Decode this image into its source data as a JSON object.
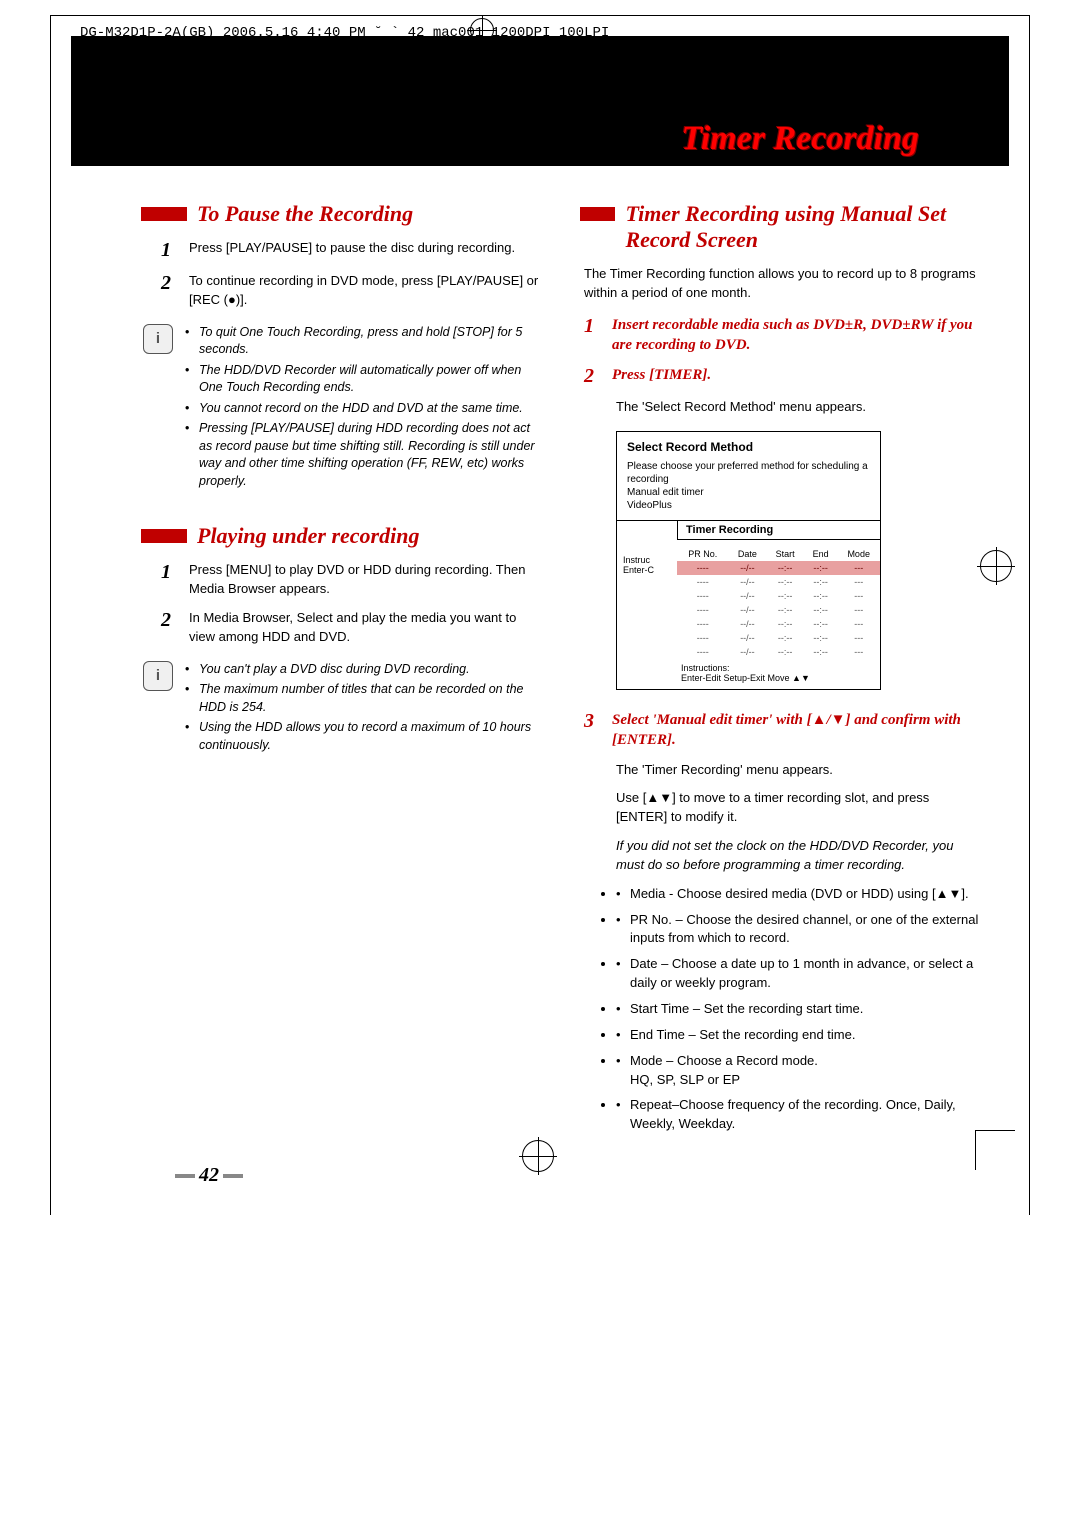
{
  "crop_header": "DG-M32D1P-2A(GB)  2006.5.16 4:40 PM  ˘   ` 42   mac001  1200DPI 100LPI",
  "page_title": "Timer Recording",
  "page_number": "42",
  "colors": {
    "accent_red": "#c00000",
    "title_red": "#ff0000",
    "black": "#000000",
    "selected_row_bg": "#e8a0a0"
  },
  "left": {
    "section1": {
      "title": "To Pause the Recording",
      "steps": [
        {
          "num": "1",
          "text": "Press [PLAY/PAUSE] to pause the disc during recording."
        },
        {
          "num": "2",
          "text": "To continue recording in DVD mode, press [PLAY/PAUSE] or [REC (●)]."
        }
      ],
      "notes": [
        "To quit One Touch Recording, press and hold [STOP] for 5 seconds.",
        "The HDD/DVD Recorder will automatically power off when One Touch Recording ends.",
        "You cannot record on the HDD and DVD at the same time.",
        "Pressing [PLAY/PAUSE] during HDD recording does not act as record pause but time shifting still. Recording is still under way and other time shifting operation (FF, REW, etc) works properly."
      ]
    },
    "section2": {
      "title": "Playing under recording",
      "steps": [
        {
          "num": "1",
          "text": "Press [MENU] to play DVD or HDD during recording. Then Media Browser appears."
        },
        {
          "num": "2",
          "text": "In Media Browser, Select and play the media you want to view among HDD and DVD."
        }
      ],
      "notes": [
        "You can't play a DVD disc during DVD recording.",
        "The maximum number of titles that can be recorded on the HDD is 254.",
        "Using the HDD allows you to record a maximum of 10 hours continuously."
      ]
    }
  },
  "right": {
    "title": "Timer Recording using Manual Set Record Screen",
    "intro": "The Timer Recording function allows you to record up to 8 programs within a period of one month.",
    "steps": {
      "s1": {
        "num": "1",
        "head": "Insert recordable media such as DVD±R, DVD±RW if you are recording to DVD."
      },
      "s2": {
        "num": "2",
        "head": "Press [TIMER].",
        "body": "The 'Select Record Method' menu appears."
      },
      "s3": {
        "num": "3",
        "head": "Select 'Manual edit timer' with [▲/▼] and confirm with [ENTER].",
        "body1": "The 'Timer Recording' menu appears.",
        "body2": "Use [▲▼] to move to a timer recording slot, and press [ENTER] to modify it.",
        "italic": "If you did not set the clock on the HDD/DVD Recorder, you must do so before programming a timer recording.",
        "bullets": [
          "Media - Choose desired media (DVD or HDD) using [▲▼].",
          "PR No. – Choose the desired channel, or one of the external inputs from which to record.",
          "Date – Choose a date up to 1 month in advance, or select a daily or weekly program.",
          "Start Time – Set the recording start time.",
          "End Time – Set the recording end time.",
          "Mode – Choose a Record mode.\nHQ, SP, SLP or EP",
          "Repeat–Choose frequency of the recording. Once, Daily, Weekly, Weekday."
        ]
      }
    },
    "screen1": {
      "title": "Select Record Method",
      "line1": "Please choose your preferred method for scheduling a recording",
      "opt1": "Manual edit timer",
      "opt2": "VideoPlus"
    },
    "screen2": {
      "tab": "Timer Recording",
      "left_label1": "Instruc",
      "left_label2": "Enter-C",
      "headers": [
        "PR No.",
        "Date",
        "Start",
        "End",
        "Mode"
      ],
      "row_placeholder": [
        "----",
        "--/--",
        "--:--",
        "--:--",
        "---"
      ],
      "row_count": 7,
      "footer1": "Instructions:",
      "footer2": "Enter-Edit  Setup-Exit  Move ▲▼"
    }
  }
}
